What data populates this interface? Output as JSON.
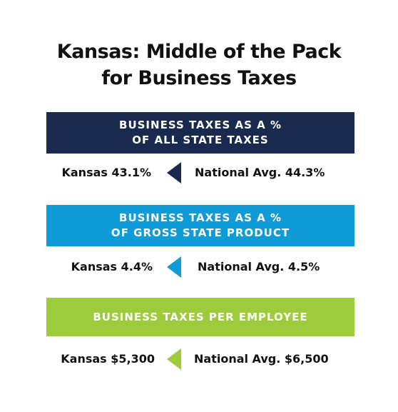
{
  "title": {
    "line1": "Kansas: Middle of the Pack",
    "line2": "for Business Taxes"
  },
  "metrics": [
    {
      "banner_line1": "BUSINESS TAXES AS A %",
      "banner_line2": "OF ALL STATE TAXES",
      "banner_color": "#1a2a4f",
      "kansas": "Kansas 43.1%",
      "national": "National Avg. 44.3%",
      "arrow_color": "#1a2a4f",
      "arrow_icon": "left-triangle-arrow"
    },
    {
      "banner_line1": "BUSINESS TAXES AS A %",
      "banner_line2": "OF GROSS STATE PRODUCT",
      "banner_color": "#0e9bd8",
      "kansas": "Kansas 4.4%",
      "national": "National Avg. 4.5%",
      "arrow_color": "#0e9bd8",
      "arrow_icon": "left-triangle-arrow"
    },
    {
      "banner_line1": "BUSINESS TAXES PER EMPLOYEE",
      "banner_line2": "",
      "banner_color": "#9ccc3c",
      "kansas": "Kansas $5,300",
      "national": "National Avg. $6,500",
      "arrow_color": "#9ccc3c",
      "arrow_icon": "left-triangle-arrow"
    }
  ]
}
